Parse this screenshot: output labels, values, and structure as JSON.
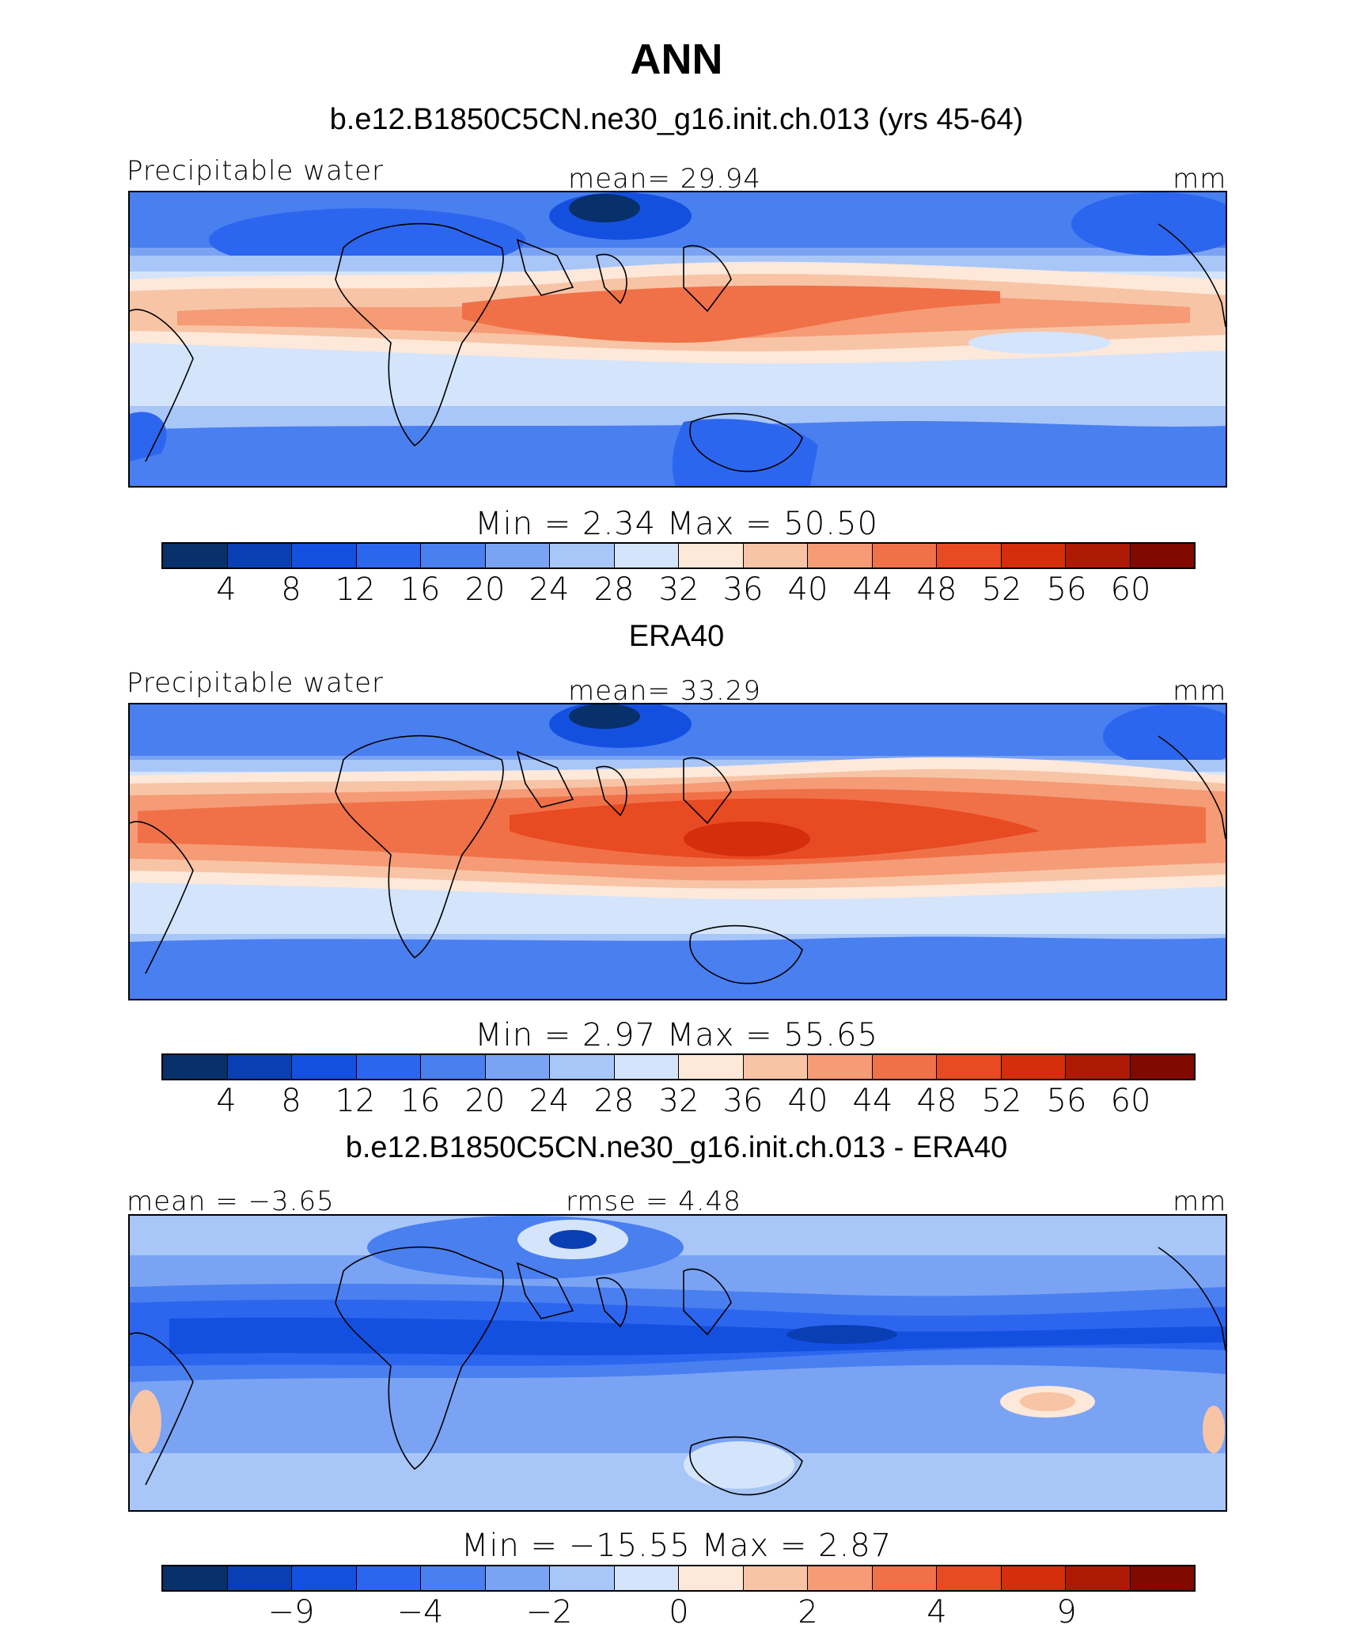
{
  "title": "ANN",
  "palette": [
    "#08306b",
    "#0a3fb4",
    "#1450e0",
    "#2d66ee",
    "#4a7ff0",
    "#7aa3f4",
    "#a8c6f8",
    "#d4e4fb",
    "#fde8d9",
    "#f8c4a6",
    "#f59b76",
    "#f07148",
    "#e84a22",
    "#d42e0c",
    "#ad1a06",
    "#800a00"
  ],
  "panels": [
    {
      "subtitle": "b.e12.B1850C5CN.ne30_g16.init.ch.013 (yrs 45-64)",
      "left_label": "Precipitable water",
      "center_label": "mean=   29.94",
      "right_label": "mm",
      "stats": "Min  =     2.34  Max  =    50.50",
      "ticks": [
        "4",
        "8",
        "12",
        "16",
        "20",
        "24",
        "28",
        "32",
        "36",
        "40",
        "44",
        "48",
        "52",
        "56",
        "60"
      ]
    },
    {
      "subtitle": "ERA40",
      "left_label": "Precipitable water",
      "center_label": "mean=   33.29",
      "right_label": "mm",
      "stats": "Min  =     2.97  Max  =    55.65",
      "ticks": [
        "4",
        "8",
        "12",
        "16",
        "20",
        "24",
        "28",
        "32",
        "36",
        "40",
        "44",
        "48",
        "52",
        "56",
        "60"
      ]
    },
    {
      "subtitle": "b.e12.B1850C5CN.ne30_g16.init.ch.013 - ERA40",
      "left_label": "mean =   −3.65",
      "center_label": "rmse =     4.48",
      "right_label": "mm",
      "stats": "Min  = −15.55  Max  =     2.87",
      "ticks": [
        "",
        "−9",
        "",
        "−4",
        "",
        "−2",
        "",
        "0",
        "",
        "2",
        "",
        "4",
        "",
        "9",
        ""
      ]
    }
  ]
}
